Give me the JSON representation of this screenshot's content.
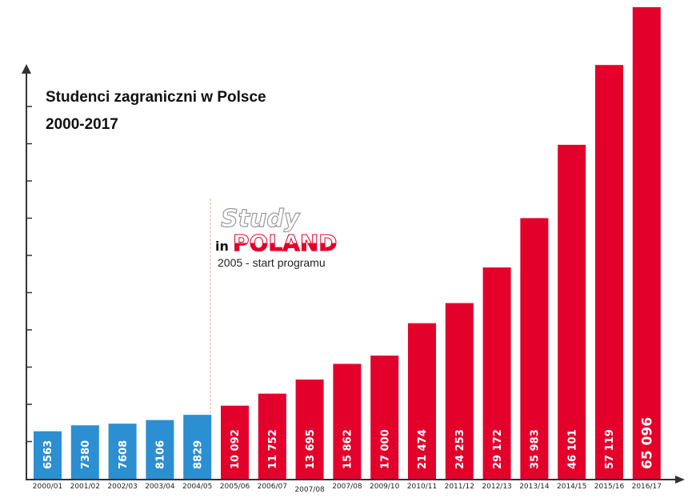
{
  "chart_data": {
    "type": "bar",
    "title_lines": [
      "Studenci zagraniczni w Polsce",
      "2000-2017"
    ],
    "categories": [
      "2000/01",
      "2001/02",
      "2002/03",
      "2003/04",
      "2004/05",
      "2005/06",
      "2006/07",
      "2007/08",
      "2007/08",
      "2009/10",
      "2010/11",
      "2011/12",
      "2012/13",
      "2013/14",
      "2014/15",
      "2015/16",
      "2016/17"
    ],
    "values": [
      6563,
      7380,
      7608,
      8106,
      8829,
      10092,
      11752,
      13695,
      15862,
      17000,
      21474,
      24253,
      29172,
      35983,
      46101,
      57119,
      65096
    ],
    "value_labels": [
      "6563",
      "7380",
      "7608",
      "8106",
      "8829",
      "10 092",
      "11 752",
      "13 695",
      "15 862",
      "17 000",
      "21 474",
      "24 253",
      "29 172",
      "35 983",
      "46 101",
      "57 119",
      "65 096"
    ],
    "ylim": [
      0,
      65096
    ],
    "program_start_index": 5,
    "colors": {
      "before": "#2B8FD1",
      "after": "#E3002B"
    }
  },
  "logo": {
    "study": "Study",
    "in": "in",
    "poland": "POLAND",
    "subtitle": "2005 - start programu"
  }
}
